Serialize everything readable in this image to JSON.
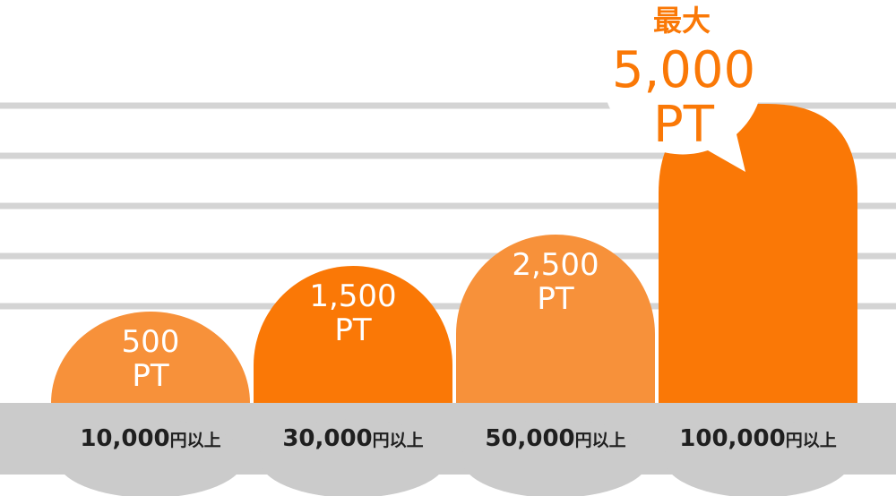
{
  "chart_data": {
    "type": "bar",
    "categories": [
      {
        "amount": "10,000",
        "suffix": "円以上"
      },
      {
        "amount": "30,000",
        "suffix": "円以上"
      },
      {
        "amount": "50,000",
        "suffix": "円以上"
      },
      {
        "amount": "100,000",
        "suffix": "円以上"
      }
    ],
    "values": [
      500,
      1500,
      2500,
      5000
    ],
    "value_labels": [
      "500",
      "1,500",
      "2,500",
      "5,000"
    ],
    "unit": "PT",
    "callout": {
      "prefix": "最大",
      "value": "5,000",
      "unit": "PT"
    },
    "grid": true
  },
  "colors": {
    "orange_light": "#F7913A",
    "orange_dark": "#FA7806",
    "base_band": "#CBCBCB",
    "grid_line": "#D4D4D4",
    "label_text": "#1f1f1f",
    "white": "#ffffff"
  }
}
